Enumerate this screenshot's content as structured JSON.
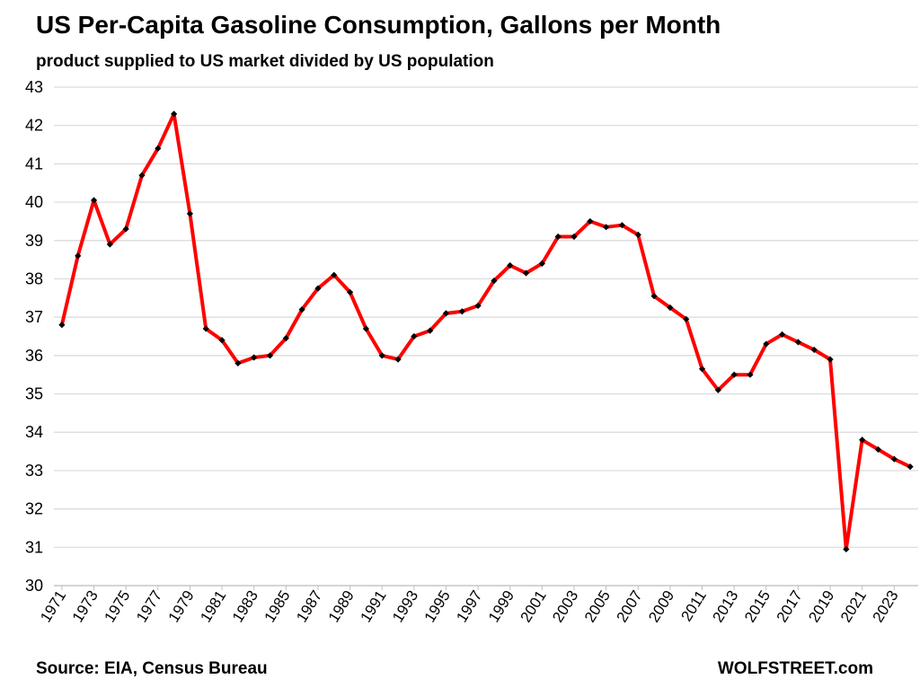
{
  "header": {
    "title": "US Per-Capita Gasoline Consumption, Gallons per Month",
    "subtitle": "product supplied to US market divided by US population"
  },
  "footer": {
    "source": "Source: EIA, Census Bureau",
    "brand": "WOLFSTREET.com"
  },
  "chart_data": {
    "type": "line",
    "title": "US Per-Capita Gasoline Consumption, Gallons per Month",
    "subtitle": "product supplied to US market divided by US population",
    "xlabel": "",
    "ylabel": "",
    "ylim": [
      30,
      43
    ],
    "yticks": [
      30,
      31,
      32,
      33,
      34,
      35,
      36,
      37,
      38,
      39,
      40,
      41,
      42,
      43
    ],
    "xtick_labels": [
      "1971",
      "1973",
      "1975",
      "1977",
      "1979",
      "1981",
      "1983",
      "1985",
      "1987",
      "1989",
      "1991",
      "1993",
      "1995",
      "1997",
      "1999",
      "2001",
      "2003",
      "2005",
      "2007",
      "2009",
      "2011",
      "2013",
      "2015",
      "2017",
      "2019",
      "2021",
      "2023"
    ],
    "grid": true,
    "line_color": "#ff0000",
    "marker_color": "#000000",
    "x": [
      1971,
      1972,
      1973,
      1974,
      1975,
      1976,
      1977,
      1978,
      1979,
      1980,
      1981,
      1982,
      1983,
      1984,
      1985,
      1986,
      1987,
      1988,
      1989,
      1990,
      1991,
      1992,
      1993,
      1994,
      1995,
      1996,
      1997,
      1998,
      1999,
      2000,
      2001,
      2002,
      2003,
      2004,
      2005,
      2006,
      2007,
      2008,
      2009,
      2010,
      2011,
      2012,
      2013,
      2014,
      2015,
      2016,
      2017,
      2018,
      2019,
      2020,
      2021,
      2022,
      2023,
      2024
    ],
    "series": [
      {
        "values": [
          36.8,
          38.6,
          40.05,
          38.9,
          39.3,
          40.7,
          41.4,
          42.3,
          39.7,
          36.7,
          36.4,
          35.8,
          35.95,
          36.0,
          36.45,
          37.2,
          37.75,
          38.1,
          37.65,
          36.7,
          36.0,
          35.9,
          36.5,
          36.65,
          37.1,
          37.15,
          37.3,
          37.95,
          38.35,
          38.15,
          38.4,
          39.1,
          39.1,
          39.5,
          39.35,
          39.4,
          39.15,
          37.55,
          37.25,
          36.95,
          35.65,
          35.1,
          35.5,
          35.5,
          36.3,
          36.55,
          36.35,
          36.15,
          35.9,
          30.95,
          33.8,
          33.55,
          33.3,
          33.1
        ]
      }
    ]
  }
}
